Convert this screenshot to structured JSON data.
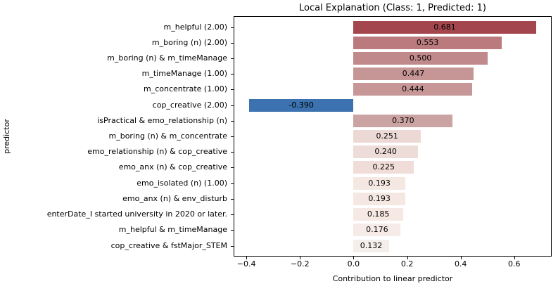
{
  "chart_data": {
    "type": "bar",
    "orientation": "horizontal",
    "title": "Local Explanation (Class: 1, Predicted: 1)",
    "xlabel": "Contribution to linear predictor",
    "ylabel": "predictor",
    "categories": [
      "m_helpful (2.00)",
      "m_boring (n) (2.00)",
      "m_boring (n) & m_timeManage",
      "m_timeManage (1.00)",
      "m_concentrate (1.00)",
      "cop_creative (2.00)",
      "isPractical & emo_relationship (n)",
      "m_boring (n) & m_concentrate",
      "emo_relationship (n) & cop_creative",
      "emo_anx (n) & cop_creative",
      "emo_isolated (n) (1.00)",
      "emo_anx (n) & env_disturb",
      "enterDate_I started university in 2020 or later.",
      "m_helpful & m_timeManage",
      "cop_creative & fstMajor_STEM"
    ],
    "values": [
      0.681,
      0.553,
      0.5,
      0.447,
      0.444,
      -0.39,
      0.37,
      0.251,
      0.24,
      0.225,
      0.193,
      0.193,
      0.185,
      0.176,
      0.132
    ],
    "value_labels": [
      "0.681",
      "0.553",
      "0.500",
      "0.447",
      "0.444",
      "-0.390",
      "0.370",
      "0.251",
      "0.240",
      "0.225",
      "0.193",
      "0.193",
      "0.185",
      "0.176",
      "0.132"
    ],
    "bar_colors": [
      "#a4464d",
      "#bb7b7e",
      "#c08a8c",
      "#c69596",
      "#c79697",
      "#3b72af",
      "#cba3a2",
      "#ecd9d5",
      "#eedcd8",
      "#f0ddd9",
      "#f5e8e2",
      "#f5e8e2",
      "#f6e9e4",
      "#f6ebe6",
      "#f5efeb"
    ],
    "positive_color_max": "#a4464d",
    "negative_color": "#3b72af",
    "xlim": [
      -0.445,
      0.737
    ],
    "xticks": [
      -0.4,
      -0.2,
      0.0,
      0.2,
      0.4,
      0.6
    ],
    "xtick_labels": [
      "−0.4",
      "−0.2",
      "0.0",
      "0.2",
      "0.4",
      "0.6"
    ],
    "grid": false,
    "legend": "none"
  }
}
